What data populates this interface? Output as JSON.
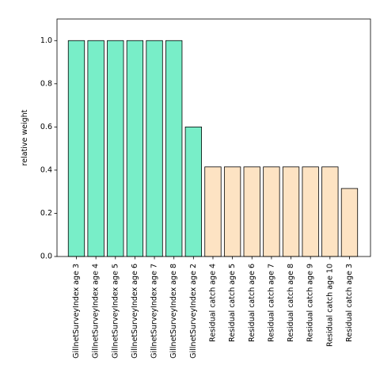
{
  "chart_data": {
    "type": "bar",
    "title": "",
    "xlabel": "",
    "ylabel": "relative weight",
    "ylim": [
      0,
      1.1
    ],
    "yticks": [
      0.0,
      0.2,
      0.4,
      0.6,
      0.8,
      1.0
    ],
    "ytick_labels": [
      "0.0",
      "0.2",
      "0.4",
      "0.6",
      "0.8",
      "1.0"
    ],
    "grid": false,
    "categories": [
      "GillnetSurveyIndex age 3",
      "GillnetSurveyIndex age 4",
      "GillnetSurveyIndex age 5",
      "GillnetSurveyIndex age 6",
      "GillnetSurveyIndex age 7",
      "GillnetSurveyIndex age 8",
      "GillnetSurveyIndex age 2",
      "Residual catch age 4",
      "Residual catch age 5",
      "Residual catch age 6",
      "Residual catch age 7",
      "Residual catch age 8",
      "Residual catch age 9",
      "Residual catch age 10",
      "Residual catch age 3"
    ],
    "values": [
      1.0,
      1.0,
      1.0,
      1.0,
      1.0,
      1.0,
      0.6,
      0.415,
      0.415,
      0.415,
      0.415,
      0.415,
      0.415,
      0.415,
      0.315
    ],
    "bar_colors": [
      "#78eec8",
      "#78eec8",
      "#78eec8",
      "#78eec8",
      "#78eec8",
      "#78eec8",
      "#78eec8",
      "#fde3c3",
      "#fde3c3",
      "#fde3c3",
      "#fde3c3",
      "#fde3c3",
      "#fde3c3",
      "#fde3c3",
      "#fde3c3"
    ],
    "edge_color": "#000000"
  }
}
